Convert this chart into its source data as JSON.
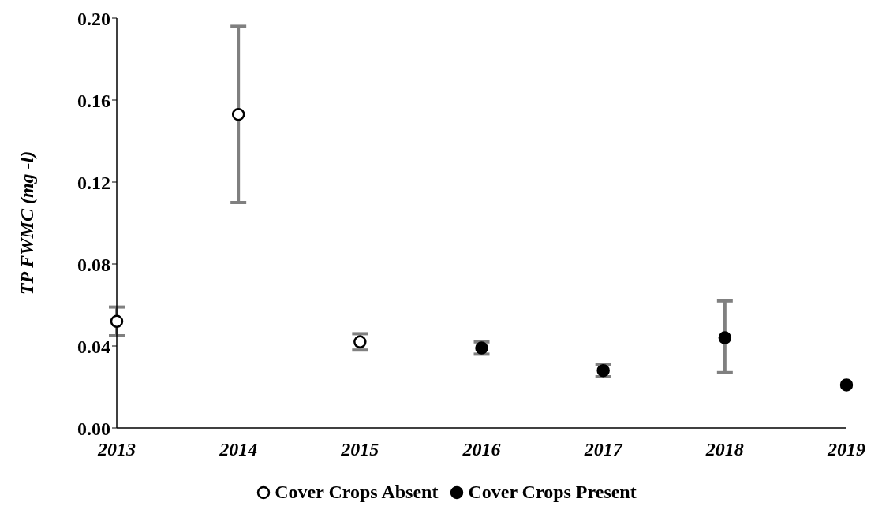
{
  "chart_data": {
    "type": "scatter",
    "ylabel": "TP FWMC (mg -l)",
    "categories": [
      "2013",
      "2014",
      "2015",
      "2016",
      "2017",
      "2018",
      "2019"
    ],
    "series": [
      {
        "name": "Cover Crops Absent",
        "color": "#ffffff",
        "values": [
          0.052,
          0.153,
          0.042,
          null,
          null,
          null,
          null
        ],
        "errors": [
          [
            0.045,
            0.059
          ],
          [
            0.11,
            0.196
          ],
          [
            0.038,
            0.046
          ],
          null,
          null,
          null,
          null
        ]
      },
      {
        "name": "Cover Crops Present",
        "color": "#000000",
        "values": [
          null,
          null,
          null,
          0.039,
          0.028,
          0.044,
          0.021
        ],
        "errors": [
          null,
          null,
          null,
          [
            0.036,
            0.042
          ],
          [
            0.025,
            0.031
          ],
          [
            0.027,
            0.062
          ],
          null
        ]
      }
    ],
    "ylim": [
      0,
      0.2
    ],
    "yticks": [
      {
        "value": 0,
        "label": "0.00"
      },
      {
        "value": 0.04,
        "label": "0.04"
      },
      {
        "value": 0.08,
        "label": "0.08"
      },
      {
        "value": 0.12,
        "label": "0.12"
      },
      {
        "value": 0.16,
        "label": "0.16"
      },
      {
        "value": 0.2,
        "label": "0.20"
      }
    ],
    "marker": "circle",
    "grid": false,
    "legend": "bottom"
  }
}
